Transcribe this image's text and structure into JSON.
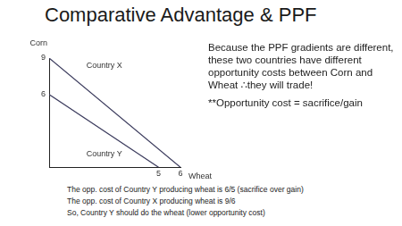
{
  "title": "Comparative Advantage & PPF",
  "chart_data": {
    "type": "line",
    "x_label": "Wheat",
    "y_label": "Corn",
    "series": [
      {
        "name": "Country X",
        "color": "#3a3a5c",
        "x": [
          0,
          6
        ],
        "values": [
          9,
          0
        ]
      },
      {
        "name": "Country Y",
        "color": "#3a3a5c",
        "x": [
          0,
          5
        ],
        "values": [
          6,
          0
        ]
      }
    ],
    "xlim": [
      0,
      6
    ],
    "xticks": [
      5,
      6
    ],
    "ylim": [
      0,
      9
    ],
    "yticks": [
      6,
      9
    ],
    "grid": false
  },
  "notes": [
    "Because the PPF gradients are different, these two countries have different opportunity costs between Corn and Wheat ∴they will trade!",
    "**Opportunity cost = sacrifice/gain"
  ],
  "footer": [
    "The opp. cost of Country Y producing wheat is 6/5 (sacrifice over gain)",
    "The opp. cost of Country X producing wheat is 9/6",
    "So, Country Y should do the wheat (lower opportunity cost)"
  ]
}
